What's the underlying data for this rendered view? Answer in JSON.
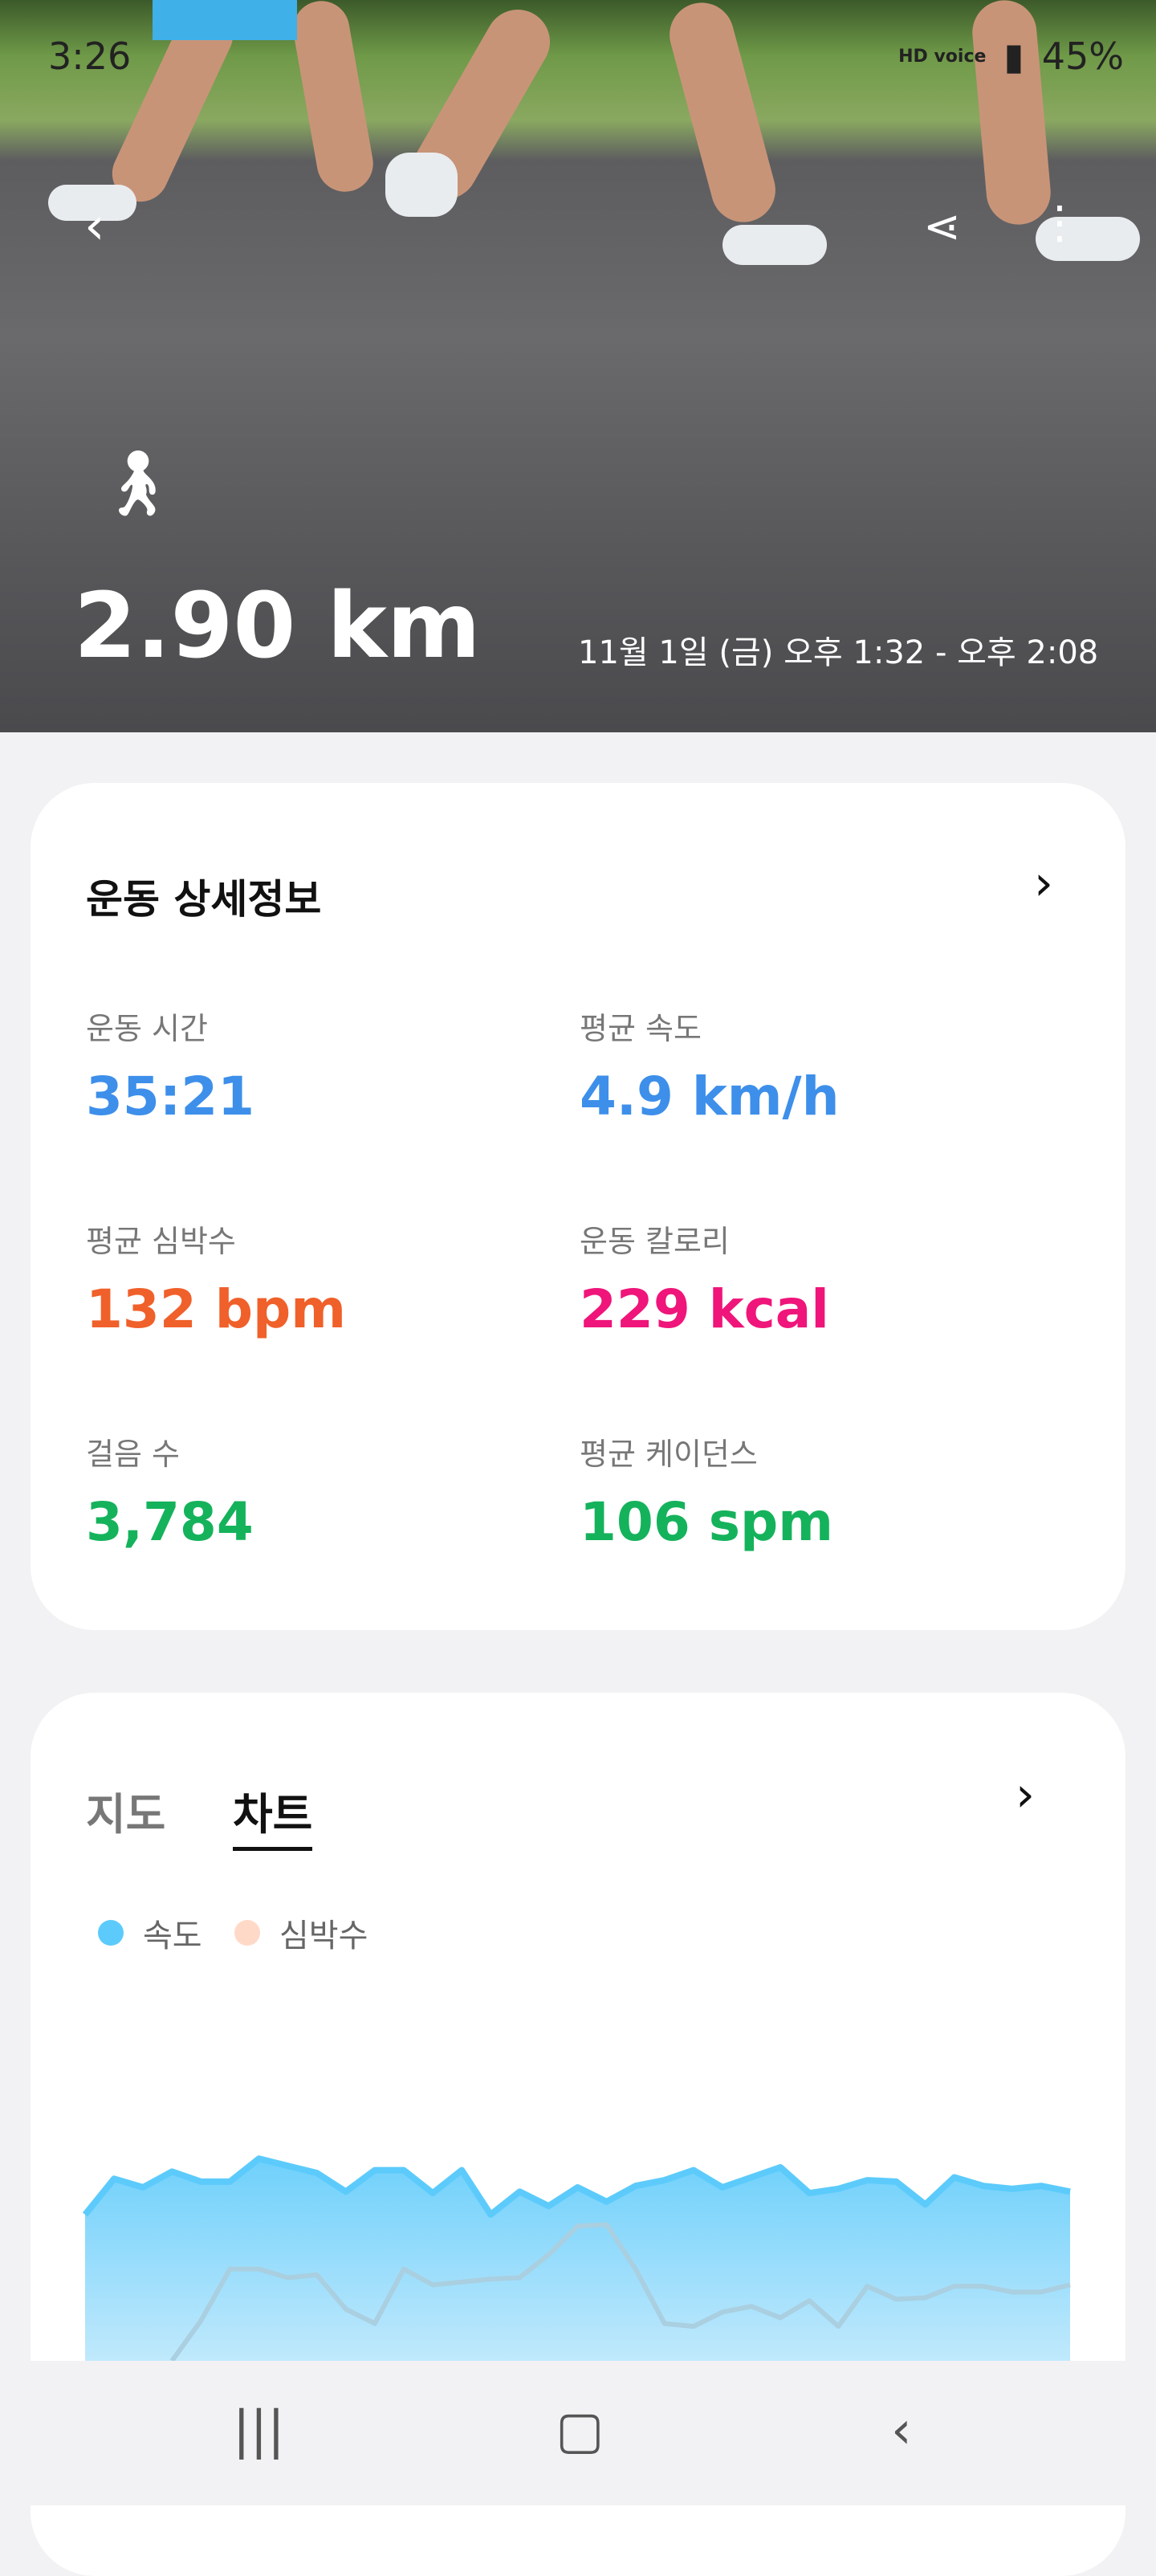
{
  "status_bar": {
    "time": "3:26",
    "battery": "45%",
    "network": "HD voice"
  },
  "hero": {
    "distance": "2.90 km",
    "datetime": "11월 1일 (금) 오후 1:32 - 오후 2:08",
    "activity_icon": "walking-icon"
  },
  "details": {
    "title": "운동 상세정보",
    "items": [
      {
        "label": "운동 시간",
        "value": "35:21",
        "color": "#3d8fea"
      },
      {
        "label": "평균 속도",
        "value": "4.9 km/h",
        "color": "#3d8fea"
      },
      {
        "label": "평균 심박수",
        "value": "132 bpm",
        "color": "#f0602a"
      },
      {
        "label": "운동 칼로리",
        "value": "229 kcal",
        "color": "#ef157a"
      },
      {
        "label": "걸음 수",
        "value": "3,784",
        "color": "#15b25c"
      },
      {
        "label": "평균 케이던스",
        "value": "106 spm",
        "color": "#15b25c"
      }
    ]
  },
  "chart_section": {
    "tabs": [
      {
        "label": "지도",
        "active": false
      },
      {
        "label": "차트",
        "active": true
      }
    ]
  },
  "chart_data": {
    "type": "area",
    "grid": false,
    "legend_placement": "top-left",
    "series": [
      {
        "name": "속도",
        "color": "#5ccbfb",
        "values": [
          51,
          63.5,
          60.5,
          66,
          62.5,
          62.5,
          70.5,
          68,
          65.5,
          59,
          66.5,
          66.5,
          58.5,
          66.5,
          51,
          59,
          54,
          60.5,
          55.5,
          61,
          63,
          66.5,
          60.5,
          64,
          67.5,
          58.5,
          60,
          63,
          62.5,
          54.5,
          64,
          61,
          60,
          61,
          59
        ]
      },
      {
        "name": "심박수",
        "color": "#ffd9c8",
        "values": [
          null,
          null,
          null,
          0,
          14,
          32,
          32,
          29,
          30,
          18,
          13,
          32,
          26.5,
          27.5,
          28.5,
          29,
          37,
          47,
          47.5,
          32,
          13,
          12,
          17,
          19,
          15,
          21,
          12,
          26,
          21.5,
          22,
          26,
          26,
          24,
          24,
          26.5
        ]
      }
    ]
  }
}
